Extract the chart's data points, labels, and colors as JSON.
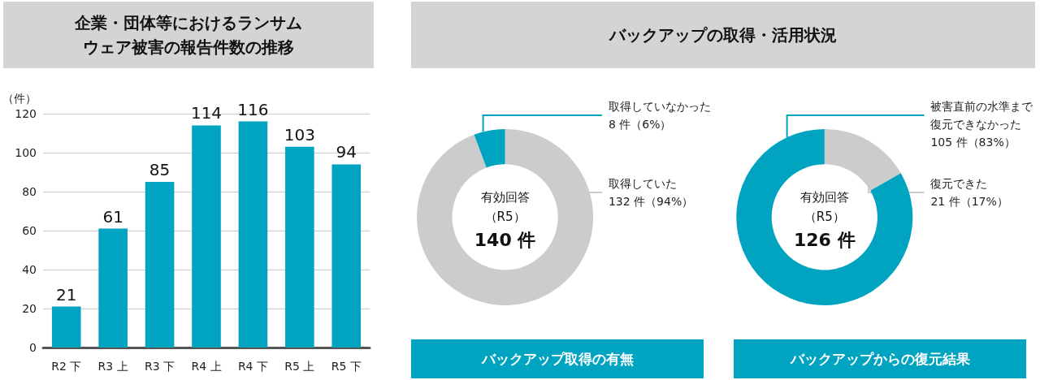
{
  "chart_data": [
    {
      "type": "bar",
      "title": "企業・団体等におけるランサムウェア被害の報告件数の推移",
      "ylabel": "（件）",
      "categories": [
        "R2 下",
        "R3 上",
        "R3 下",
        "R4 上",
        "R4 下",
        "R5 上",
        "R5 下"
      ],
      "values": [
        21,
        61,
        85,
        114,
        116,
        103,
        94
      ],
      "color": "#00a3c0",
      "ylim": [
        0,
        120
      ],
      "yticks": [
        0,
        20,
        40,
        60,
        80,
        100,
        120
      ],
      "grid": "y",
      "data_labels": true
    },
    {
      "type": "donut",
      "title": "バックアップの取得・活用状況",
      "subtitle": "バックアップ取得の有無",
      "categories": [
        "取得していた",
        "取得していなかった"
      ],
      "values": [
        132,
        8
      ],
      "colors": [
        "#cccccc",
        "#00a3c0"
      ],
      "value_labels": [
        "132 件（94%）",
        "8 件（6%）"
      ],
      "annotations": [
        "有効回答",
        "（R5）",
        "140 件"
      ]
    },
    {
      "type": "donut",
      "title": "バックアップからの復元結果",
      "categories": [
        "復元できた",
        "被害直前の水準まで復元できなかった"
      ],
      "values": [
        21,
        105
      ],
      "colors": [
        "#cccccc",
        "#00a3c0"
      ],
      "value_labels": [
        "21 件（17%）",
        "105 件（83%）"
      ],
      "annotations": [
        "有効回答",
        "（R5）",
        "126 件"
      ]
    }
  ]
}
